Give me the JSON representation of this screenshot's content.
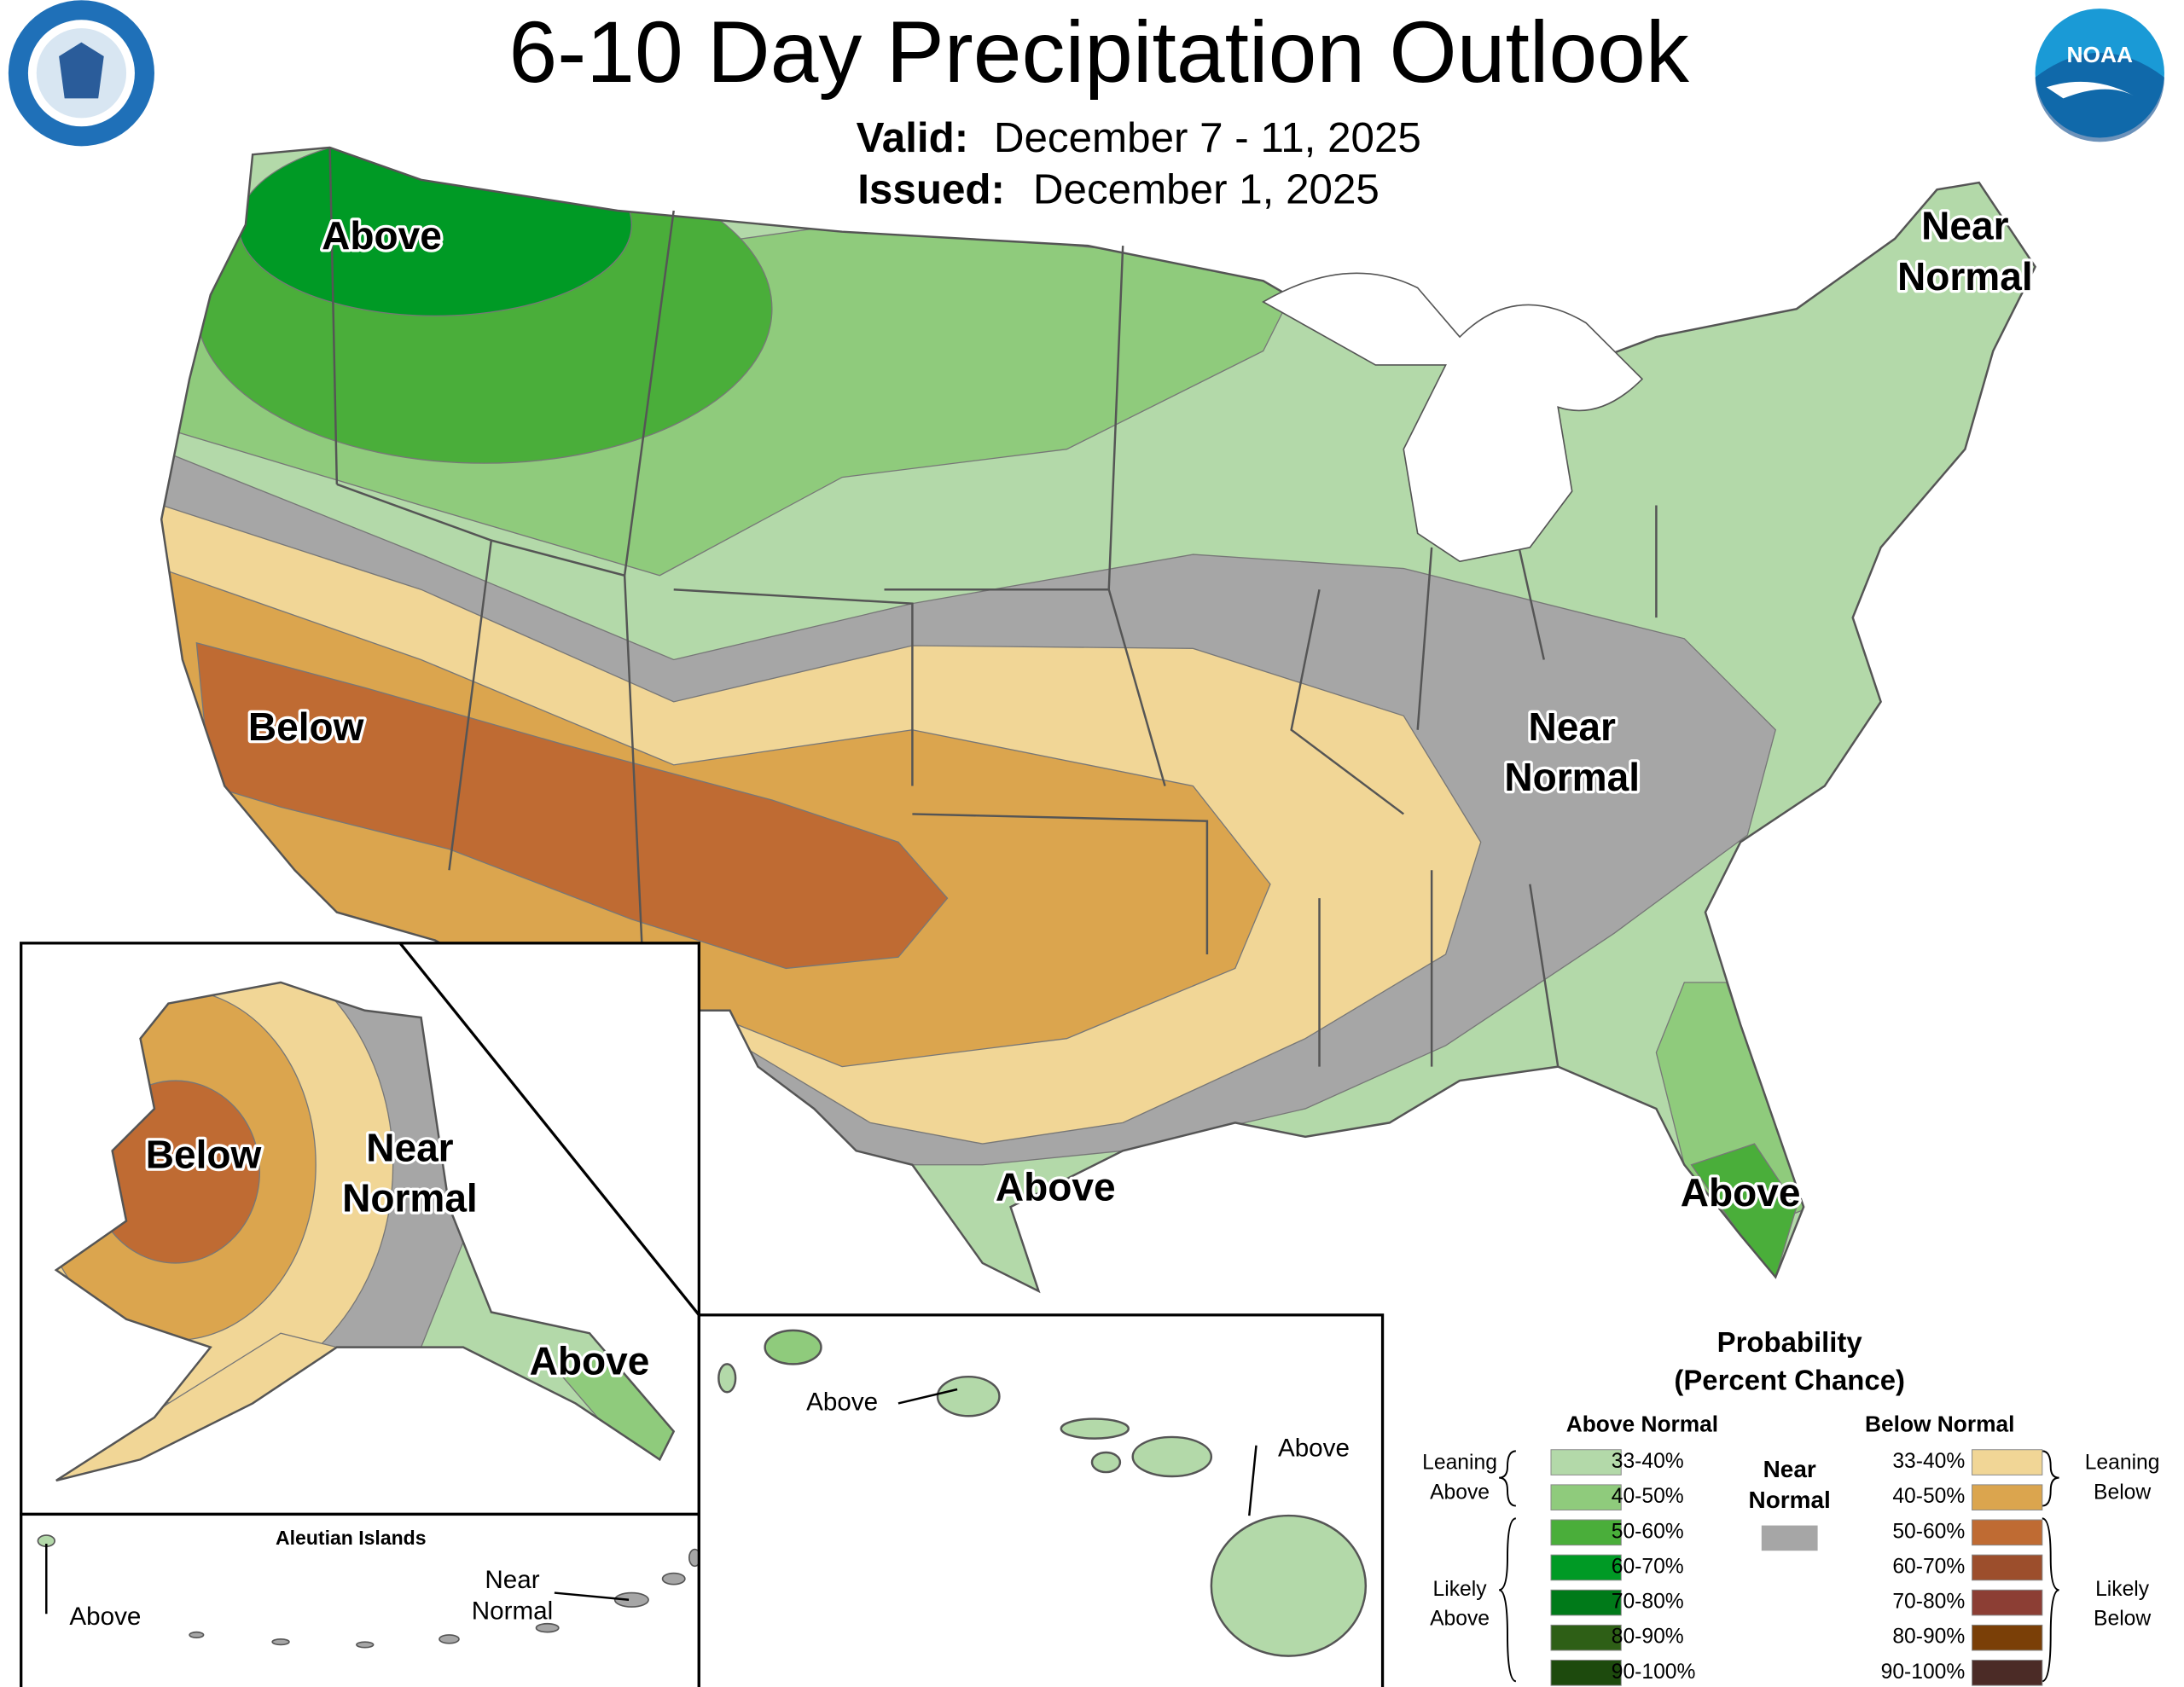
{
  "header": {
    "title": "6-10 Day Precipitation Outlook",
    "valid_label": "Valid:",
    "valid_value": "December 7 - 11, 2025",
    "issued_label": "Issued:",
    "issued_value": "December 1, 2025"
  },
  "logos": {
    "noaa": "NOAA"
  },
  "map_labels": [
    {
      "lines": [
        "Above"
      ]
    },
    {
      "lines": [
        "Near",
        "Normal"
      ]
    },
    {
      "lines": [
        "Below"
      ]
    },
    {
      "lines": [
        "Near",
        "Normal"
      ]
    },
    {
      "lines": [
        "Above"
      ]
    },
    {
      "lines": [
        "Above"
      ]
    },
    {
      "lines": [
        "Below"
      ]
    },
    {
      "lines": [
        "Near",
        "Normal"
      ]
    },
    {
      "lines": [
        "Above"
      ]
    },
    {
      "lines": [
        "Above"
      ]
    },
    {
      "lines": [
        "Above"
      ]
    }
  ],
  "aleutian": {
    "title": "Aleutian Islands",
    "labels": [
      {
        "lines": [
          "Above"
        ]
      },
      {
        "lines": [
          "Near",
          "Normal"
        ]
      }
    ]
  },
  "legend": {
    "title": "Probability",
    "subtitle": "(Percent Chance)",
    "above_header": "Above Normal",
    "below_header": "Below Normal",
    "near": {
      "lines": [
        "Near",
        "Normal"
      ],
      "color": "#a6a6a6"
    },
    "above_items": [
      {
        "label": "33-40%",
        "color": "#b3d9a9"
      },
      {
        "label": "40-50%",
        "color": "#8fcb7c"
      },
      {
        "label": "50-60%",
        "color": "#4aae3a"
      },
      {
        "label": "60-70%",
        "color": "#009a25"
      },
      {
        "label": "70-80%",
        "color": "#007a19"
      },
      {
        "label": "80-90%",
        "color": "#2e5f16"
      },
      {
        "label": "90-100%",
        "color": "#1d4a0d"
      }
    ],
    "below_items": [
      {
        "label": "33-40%",
        "color": "#f1d696"
      },
      {
        "label": "40-50%",
        "color": "#dba54e"
      },
      {
        "label": "50-60%",
        "color": "#bf6b33"
      },
      {
        "label": "60-70%",
        "color": "#9c4e2c"
      },
      {
        "label": "70-80%",
        "color": "#8c3e34"
      },
      {
        "label": "80-90%",
        "color": "#7a3f07"
      },
      {
        "label": "90-100%",
        "color": "#4b2b26"
      }
    ],
    "brackets": {
      "leaning_above": [
        "Leaning",
        "Above"
      ],
      "likely_above": [
        "Likely",
        "Above"
      ],
      "leaning_below": [
        "Leaning",
        "Below"
      ],
      "likely_below": [
        "Likely",
        "Below"
      ]
    }
  }
}
